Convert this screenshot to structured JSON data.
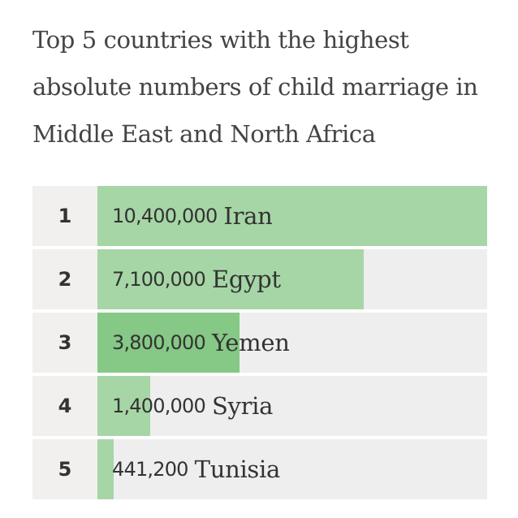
{
  "chart_data": {
    "type": "bar",
    "orientation": "horizontal",
    "title": "Top 5 countries with the highest absolute numbers of child marriage in Middle East and North Africa",
    "ranks": [
      "1",
      "2",
      "3",
      "4",
      "5"
    ],
    "categories": [
      "Iran",
      "Egypt",
      "Yemen",
      "Syria",
      "Tunisia"
    ],
    "values": [
      10400000,
      7100000,
      3800000,
      1400000,
      441200
    ],
    "value_labels": [
      "10,400,000",
      "7,100,000",
      "3,800,000",
      "1,400,000",
      "441,200"
    ],
    "xlim": [
      0,
      10400000
    ],
    "highlighted_index": 2,
    "grid": false,
    "legend": "none"
  },
  "colors": {
    "bar": "#a6d6a6",
    "bar_highlight": "#86c886",
    "track": "#eeeeee",
    "rank_background": "#f1f0ee",
    "text": "#333333",
    "title": "#444444"
  }
}
